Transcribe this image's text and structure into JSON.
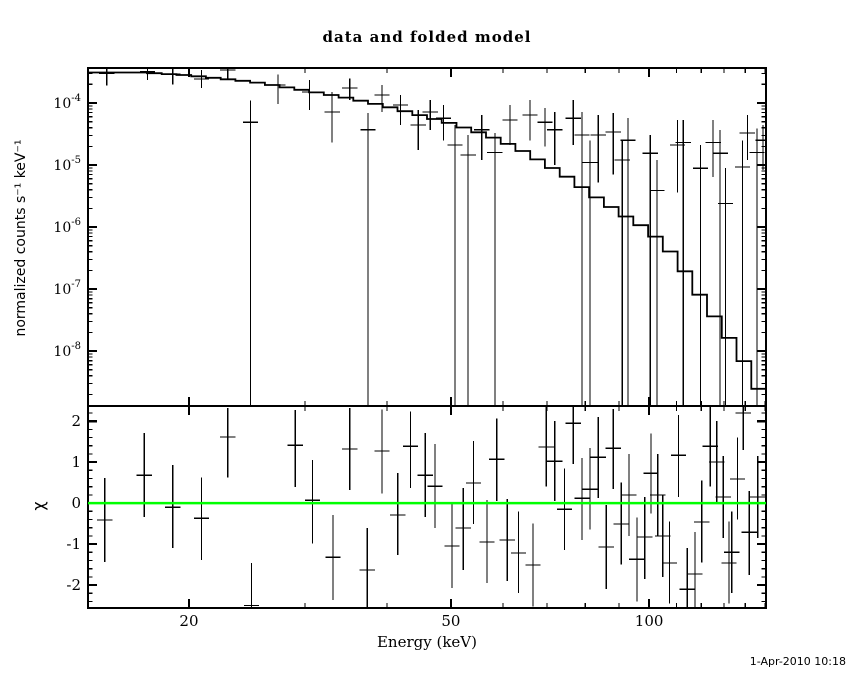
{
  "footer": {
    "timestamp": "1-Apr-2010 10:18"
  },
  "colors": {
    "foreground": "#000000",
    "background": "#ffffff",
    "model": "#000000",
    "zero_line": "#00ff00"
  },
  "chart_data": [
    {
      "type": "line",
      "panel": "spectrum",
      "title": "data and folded model",
      "xlabel": "Energy (keV)",
      "ylabel": "normalized counts s⁻¹ keV⁻¹",
      "xscale": "log",
      "yscale": "log",
      "xlim": [
        14.05,
        150.5
      ],
      "ylim": [
        1.3e-09,
        0.000367
      ],
      "grid": false,
      "xticks_major": [
        20,
        50,
        100
      ],
      "xtick_labels": [
        "20",
        "50",
        "100"
      ],
      "xticks_minor": [
        30,
        40,
        60,
        70,
        80,
        90,
        110,
        120,
        130,
        140,
        150
      ],
      "ytick_exponents": [
        -4,
        -5,
        -6,
        -7,
        -8
      ],
      "bin_half_width_ratio": 1.027,
      "model_curve": [
        [
          14,
          0.00031
        ],
        [
          17,
          0.00031
        ],
        [
          20,
          0.00028
        ],
        [
          25,
          0.00022
        ],
        [
          30,
          0.00016
        ],
        [
          35,
          0.00012
        ],
        [
          40,
          8.8e-05
        ],
        [
          45,
          6.3e-05
        ],
        [
          50,
          4.7e-05
        ],
        [
          57,
          3e-05
        ],
        [
          63,
          1.9e-05
        ],
        [
          68,
          1.2e-05
        ],
        [
          75,
          6.5e-06
        ],
        [
          84,
          2.8e-06
        ],
        [
          92,
          1.5e-06
        ],
        [
          100,
          8.9e-07
        ],
        [
          110,
          3.2e-07
        ],
        [
          120,
          7.4e-08
        ],
        [
          133,
          1.5e-08
        ],
        [
          142,
          5e-09
        ],
        [
          150.5,
          1.4e-09
        ]
      ],
      "model_bins": 46,
      "points": [
        [
          15.0,
          0.0003,
          0.00039,
          0.00019
        ],
        [
          17.3,
          0.00032,
          0.00042,
          0.000235
        ],
        [
          18.9,
          0.00029,
          0.000395,
          0.0002
        ],
        [
          20.9,
          0.000244,
          0.00034,
          0.000174
        ],
        [
          22.9,
          0.00034,
          0.00043,
          0.00025
        ],
        [
          24.8,
          4.9e-05,
          0.00011,
          0
        ],
        [
          27.3,
          0.000195,
          0.00029,
          9.7e-05
        ],
        [
          30.5,
          0.00015,
          0.000235,
          7.7e-05
        ],
        [
          33.0,
          7.2e-05,
          0.00015,
          2.3e-05
        ],
        [
          35.1,
          0.000174,
          0.00025,
          0.000112
        ],
        [
          37.4,
          3.7e-05,
          6.9e-05,
          0
        ],
        [
          39.3,
          0.000135,
          0.000195,
          7.2e-05
        ],
        [
          41.9,
          9.3e-05,
          0.000135,
          4.4e-05
        ],
        [
          44.6,
          4.4e-05,
          7.7e-05,
          1.75e-05
        ],
        [
          46.5,
          7.2e-05,
          0.000112,
          3.7e-05
        ],
        [
          48.7,
          5.7e-05,
          9.3e-05,
          2.5e-05
        ],
        [
          50.7,
          2.1e-05,
          4.4e-05,
          0
        ],
        [
          53.1,
          1.45e-05,
          3.05e-05,
          0
        ],
        [
          55.7,
          3.7e-05,
          6.4e-05,
          1.2e-05
        ],
        [
          58.3,
          1.6e-05,
          3.3e-05,
          0
        ],
        [
          61.5,
          5.3e-05,
          9.3e-05,
          2.1e-05
        ],
        [
          65.9,
          6.4e-05,
          0.000112,
          2.5e-05
        ],
        [
          69.5,
          4.9e-05,
          8.3e-05,
          2e-05
        ],
        [
          71.9,
          3.7e-05,
          7.2e-05,
          1e-05
        ],
        [
          76.7,
          5.7e-05,
          0.000112,
          2.1e-05
        ],
        [
          79.1,
          3.05e-05,
          7.2e-05,
          0
        ],
        [
          81.3,
          1.1e-05,
          2.5e-05,
          0
        ],
        [
          83.7,
          3.05e-05,
          6.4e-05,
          5.2e-06
        ],
        [
          88.2,
          3.4e-05,
          6.9e-05,
          7e-06
        ],
        [
          91.0,
          1.2e-05,
          2.5e-05,
          0
        ],
        [
          92.9,
          2.5e-05,
          5.7e-05,
          0
        ],
        [
          100.4,
          1.55e-05,
          3.05e-05,
          0
        ],
        [
          102.8,
          3.9e-06,
          1.2e-05,
          0
        ],
        [
          110.4,
          2.1e-05,
          5.3e-05,
          3.6e-06
        ],
        [
          112.7,
          2.3e-05,
          5.3e-05,
          0
        ],
        [
          119.7,
          8.9e-06,
          2.1e-05,
          0
        ],
        [
          125.1,
          2.3e-05,
          5.3e-05,
          6.4e-06
        ],
        [
          128.2,
          1.55e-05,
          3.7e-05,
          0
        ],
        [
          130.6,
          2.4e-06,
          9e-06,
          0
        ],
        [
          138.6,
          9.3e-06,
          2.5e-05,
          0
        ],
        [
          141.0,
          3.3e-05,
          6.4e-05,
          1.2e-05
        ],
        [
          145.9,
          1.6e-05,
          3.9e-05,
          0
        ],
        [
          148.9,
          2.5e-05,
          4.4e-05,
          8.3e-06
        ]
      ]
    },
    {
      "type": "scatter",
      "panel": "residuals",
      "ylabel": "χ",
      "xscale": "log",
      "yscale": "linear",
      "xlim": [
        14.05,
        150.5
      ],
      "ylim": [
        -2.56,
        2.37
      ],
      "yticks_major": [
        2,
        1,
        0,
        -1,
        -2
      ],
      "ytick_labels": [
        "2",
        "1",
        "0",
        "-1",
        "-2"
      ],
      "ytick_minor_step": 0.2,
      "zero_line": 0,
      "points": [
        [
          14.9,
          -0.41,
          0.61,
          -1.44
        ],
        [
          17.1,
          0.68,
          1.71,
          -0.34
        ],
        [
          18.9,
          -0.1,
          0.93,
          -1.1
        ],
        [
          20.9,
          -0.37,
          0.63,
          -1.39
        ],
        [
          22.9,
          1.61,
          2.32,
          0.63
        ],
        [
          24.9,
          -2.5,
          -1.46,
          -2.8
        ],
        [
          29.0,
          1.41,
          2.27,
          0.39
        ],
        [
          30.8,
          0.07,
          1.05,
          -0.98
        ],
        [
          33.1,
          -1.32,
          -0.29,
          -2.37
        ],
        [
          35.1,
          1.32,
          2.32,
          0.32
        ],
        [
          37.3,
          -1.63,
          -0.61,
          -2.8
        ],
        [
          39.3,
          1.27,
          2.29,
          0.24
        ],
        [
          41.5,
          -0.29,
          0.73,
          -1.27
        ],
        [
          43.4,
          1.39,
          2.24,
          0.37
        ],
        [
          45.7,
          0.68,
          1.71,
          -0.34
        ],
        [
          47.3,
          0.41,
          1.44,
          -0.61
        ],
        [
          50.2,
          -1.05,
          -0.02,
          -2.07
        ],
        [
          52.2,
          -0.61,
          0.37,
          -1.63
        ],
        [
          54.1,
          0.49,
          1.51,
          -0.51
        ],
        [
          56.7,
          -0.95,
          0.07,
          -1.95
        ],
        [
          58.7,
          1.07,
          2.07,
          0.05
        ],
        [
          60.9,
          -0.9,
          0.1,
          -1.9
        ],
        [
          63.3,
          -1.22,
          -0.2,
          -2.2
        ],
        [
          66.6,
          -1.51,
          -0.5,
          -2.52
        ],
        [
          69.8,
          1.37,
          2.35,
          0.4
        ],
        [
          71.9,
          1.02,
          2.0,
          0.05
        ],
        [
          74.4,
          -0.15,
          0.85,
          -1.15
        ],
        [
          76.7,
          1.95,
          2.6,
          0.95
        ],
        [
          79.1,
          0.12,
          1.1,
          -0.9
        ],
        [
          81.3,
          0.34,
          1.35,
          -0.65
        ],
        [
          83.7,
          1.12,
          2.1,
          0.12
        ],
        [
          86.1,
          -1.07,
          -0.05,
          -2.1
        ],
        [
          88.2,
          1.34,
          2.3,
          0.35
        ],
        [
          90.7,
          -0.51,
          0.5,
          -1.5
        ],
        [
          93.2,
          0.2,
          1.2,
          -0.8
        ],
        [
          95.8,
          -1.37,
          -0.35,
          -2.4
        ],
        [
          98.5,
          -0.83,
          0.15,
          -1.85
        ],
        [
          100.7,
          0.73,
          1.7,
          -0.25
        ],
        [
          103.1,
          0.2,
          1.2,
          -0.8
        ],
        [
          104.9,
          -0.8,
          0.2,
          -1.8
        ],
        [
          107.4,
          -1.46,
          -0.45,
          -2.45
        ],
        [
          110.8,
          1.17,
          2.15,
          0.15
        ],
        [
          114.3,
          -2.1,
          -1.1,
          -2.8
        ],
        [
          117.4,
          -1.73,
          -0.7,
          -2.8
        ],
        [
          120.2,
          -0.46,
          0.55,
          -1.45
        ],
        [
          123.8,
          1.39,
          2.35,
          0.4
        ],
        [
          126.7,
          1.0,
          2.0,
          0.0
        ],
        [
          129.6,
          0.15,
          1.15,
          -0.85
        ],
        [
          132.2,
          -1.46,
          -0.45,
          -2.45
        ],
        [
          133.5,
          -1.2,
          -0.2,
          -2.2
        ],
        [
          136.2,
          0.59,
          1.6,
          -0.4
        ],
        [
          139.0,
          2.2,
          2.6,
          1.3
        ],
        [
          141.9,
          -0.71,
          0.3,
          -1.75
        ],
        [
          146.2,
          0.15,
          1.15,
          -0.85
        ]
      ]
    }
  ]
}
